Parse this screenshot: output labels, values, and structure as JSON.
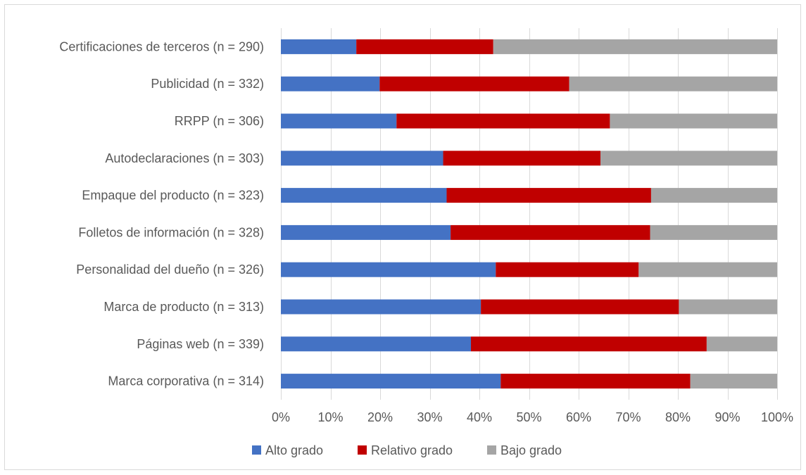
{
  "chart_data": {
    "type": "bar",
    "orientation": "horizontal",
    "stacked": "percent",
    "title": "",
    "xlabel": "",
    "ylabel": "",
    "categories": [
      "Certificaciones de terceros (n = 290)",
      "Publicidad (n = 332)",
      "RRPP (n = 306)",
      "Autodeclaraciones (n = 303)",
      "Empaque del producto (n = 323)",
      "Folletos de información (n = 328)",
      "Personalidad del dueño (n = 326)",
      "Marca de producto (n = 313)",
      "Páginas web (n = 339)",
      "Marca corporativa (n = 314)"
    ],
    "series": [
      {
        "name": "Alto grado",
        "color": "#4472c4",
        "values": [
          15.2,
          19.9,
          23.3,
          32.7,
          33.4,
          34.2,
          43.3,
          40.3,
          38.3,
          44.3
        ]
      },
      {
        "name": "Relativo grado",
        "color": "#c00000",
        "values": [
          27.6,
          38.2,
          43.0,
          31.7,
          41.2,
          40.2,
          28.8,
          39.9,
          47.5,
          38.2
        ]
      },
      {
        "name": "Bajo grado",
        "color": "#a5a5a5",
        "values": [
          57.2,
          41.9,
          33.7,
          35.6,
          25.4,
          25.6,
          27.9,
          19.8,
          14.2,
          17.5
        ]
      }
    ],
    "x_ticks": [
      "0%",
      "10%",
      "20%",
      "30%",
      "40%",
      "50%",
      "60%",
      "70%",
      "80%",
      "90%",
      "100%"
    ],
    "xlim": [
      0,
      100
    ],
    "grid": true,
    "legend_position": "bottom"
  }
}
